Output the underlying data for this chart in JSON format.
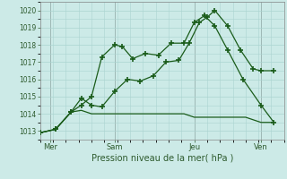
{
  "xlabel": "Pression niveau de la mer( hPa )",
  "background_color": "#cceae7",
  "grid_color": "#aad4d0",
  "line_color": "#1a5c1a",
  "ylim": [
    1012.5,
    1020.5
  ],
  "xlim": [
    0,
    9.5
  ],
  "yticks": [
    1013,
    1014,
    1015,
    1016,
    1017,
    1018,
    1019,
    1020
  ],
  "day_positions": [
    0.4,
    2.9,
    6.0,
    8.6
  ],
  "day_labels": [
    "Mer",
    "Sam",
    "Jeu",
    "Ven"
  ],
  "day_vlines": [
    0.4,
    2.9,
    6.0,
    8.6
  ],
  "series1_x": [
    0.0,
    0.6,
    1.2,
    1.6,
    2.0,
    2.4,
    2.9,
    3.4,
    3.9,
    4.4,
    4.9,
    5.4,
    5.8,
    6.2,
    6.5,
    6.8,
    7.3,
    7.8,
    8.3,
    8.6,
    9.1
  ],
  "series1_y": [
    1012.9,
    1013.1,
    1014.1,
    1014.9,
    1014.5,
    1014.4,
    1015.3,
    1016.0,
    1015.9,
    1016.2,
    1017.0,
    1017.1,
    1018.1,
    1019.3,
    1019.6,
    1020.0,
    1019.1,
    1017.7,
    1016.6,
    1016.5,
    1016.5
  ],
  "series2_x": [
    0.0,
    0.6,
    1.2,
    1.6,
    2.0,
    2.4,
    2.9,
    3.2,
    3.6,
    4.1,
    4.6,
    5.1,
    5.6,
    6.0,
    6.4,
    6.8,
    7.3,
    7.9,
    8.6,
    9.1
  ],
  "series2_y": [
    1012.9,
    1013.1,
    1014.1,
    1014.5,
    1015.0,
    1017.3,
    1018.0,
    1017.9,
    1017.2,
    1017.5,
    1017.4,
    1018.1,
    1018.1,
    1019.3,
    1019.7,
    1019.1,
    1017.7,
    1016.0,
    1014.5,
    1013.5
  ],
  "series3_x": [
    0.0,
    0.6,
    1.2,
    1.6,
    2.0,
    2.4,
    2.9,
    3.4,
    4.0,
    4.6,
    5.1,
    5.6,
    6.0,
    6.5,
    7.0,
    7.5,
    8.0,
    8.6,
    9.1
  ],
  "series3_y": [
    1012.9,
    1013.1,
    1014.1,
    1014.2,
    1014.0,
    1014.0,
    1014.0,
    1014.0,
    1014.0,
    1014.0,
    1014.0,
    1014.0,
    1013.8,
    1013.8,
    1013.8,
    1013.8,
    1013.8,
    1013.5,
    1013.5
  ]
}
